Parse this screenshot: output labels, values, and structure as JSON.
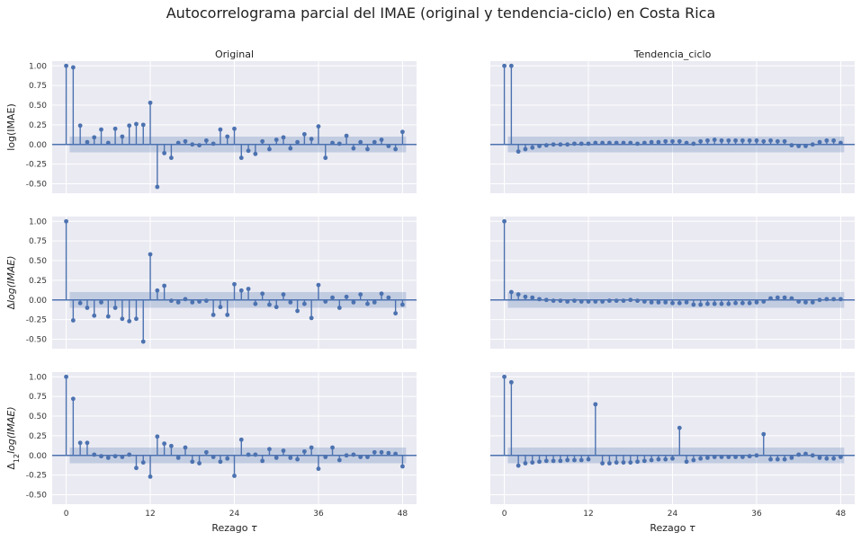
{
  "figure": {
    "title": "Autocorrelograma parcial del IMAE (original y tendencia-ciclo) en Costa Rica",
    "col_titles": [
      "Original",
      "Tendencia_ciclo"
    ],
    "row_ylabels": [
      "log(IMAE)",
      "Δlog(IMAE)",
      "Δ12log(IMAE)"
    ],
    "xlabel": "Rezago τ",
    "colors": {
      "stem": "#4c72b0",
      "band": "#4c72b0",
      "background": "#eaeaf2",
      "grid": "#ffffff"
    }
  },
  "chart_data": [
    {
      "type": "stem",
      "row": 0,
      "col": 0,
      "title": "Original",
      "ylabel": "log(IMAE)",
      "xlabel": "",
      "xlim": [
        -2,
        50
      ],
      "ylim": [
        -0.62,
        1.06
      ],
      "xticks": [
        0,
        12,
        24,
        36,
        48
      ],
      "yticks": [
        -0.5,
        -0.25,
        0.0,
        0.25,
        0.5,
        0.75,
        1.0
      ],
      "show_xticklabels": false,
      "show_yticklabels": true,
      "confint": 0.1,
      "values": [
        1.0,
        0.98,
        0.24,
        0.03,
        0.09,
        0.19,
        0.02,
        0.2,
        0.1,
        0.24,
        0.26,
        0.25,
        0.53,
        -0.54,
        -0.11,
        -0.17,
        0.02,
        0.04,
        0.0,
        -0.01,
        0.05,
        0.01,
        0.19,
        0.1,
        0.2,
        -0.17,
        -0.08,
        -0.12,
        0.04,
        -0.06,
        0.06,
        0.09,
        -0.05,
        0.03,
        0.13,
        0.07,
        0.23,
        -0.17,
        0.02,
        0.01,
        0.11,
        -0.05,
        0.03,
        -0.06,
        0.03,
        0.06,
        -0.02,
        -0.06,
        0.16
      ]
    },
    {
      "type": "stem",
      "row": 0,
      "col": 1,
      "title": "Tendencia_ciclo",
      "ylabel": "",
      "xlabel": "",
      "xlim": [
        -2,
        50
      ],
      "ylim": [
        -0.62,
        1.06
      ],
      "xticks": [
        0,
        12,
        24,
        36,
        48
      ],
      "yticks": [
        -0.5,
        -0.25,
        0.0,
        0.25,
        0.5,
        0.75,
        1.0
      ],
      "show_xticklabels": false,
      "show_yticklabels": false,
      "confint": 0.1,
      "values": [
        1.0,
        1.0,
        -0.09,
        -0.06,
        -0.04,
        -0.02,
        -0.01,
        0.0,
        0.0,
        0.0,
        0.01,
        0.01,
        0.01,
        0.02,
        0.02,
        0.02,
        0.02,
        0.02,
        0.02,
        0.01,
        0.02,
        0.03,
        0.03,
        0.04,
        0.04,
        0.04,
        0.02,
        0.01,
        0.04,
        0.05,
        0.06,
        0.05,
        0.05,
        0.05,
        0.05,
        0.05,
        0.05,
        0.04,
        0.05,
        0.04,
        0.04,
        -0.01,
        -0.02,
        -0.02,
        0.0,
        0.03,
        0.05,
        0.05,
        0.02
      ]
    },
    {
      "type": "stem",
      "row": 1,
      "col": 0,
      "title": "",
      "ylabel": "Δlog(IMAE)",
      "xlabel": "",
      "xlim": [
        -2,
        50
      ],
      "ylim": [
        -0.62,
        1.06
      ],
      "xticks": [
        0,
        12,
        24,
        36,
        48
      ],
      "yticks": [
        -0.5,
        -0.25,
        0.0,
        0.25,
        0.5,
        0.75,
        1.0
      ],
      "show_xticklabels": false,
      "show_yticklabels": true,
      "confint": 0.1,
      "values": [
        1.0,
        -0.26,
        -0.04,
        -0.1,
        -0.2,
        -0.03,
        -0.21,
        -0.1,
        -0.24,
        -0.27,
        -0.24,
        -0.53,
        0.58,
        0.12,
        0.18,
        -0.01,
        -0.03,
        0.01,
        -0.03,
        -0.02,
        -0.01,
        -0.19,
        -0.09,
        -0.19,
        0.2,
        0.12,
        0.14,
        -0.05,
        0.08,
        -0.06,
        -0.09,
        0.07,
        -0.03,
        -0.14,
        -0.05,
        -0.23,
        0.19,
        -0.02,
        0.03,
        -0.1,
        0.04,
        -0.03,
        0.07,
        -0.05,
        -0.03,
        0.08,
        0.03,
        -0.17,
        -0.06
      ]
    },
    {
      "type": "stem",
      "row": 1,
      "col": 1,
      "title": "",
      "ylabel": "",
      "xlabel": "",
      "xlim": [
        -2,
        50
      ],
      "ylim": [
        -0.62,
        1.06
      ],
      "xticks": [
        0,
        12,
        24,
        36,
        48
      ],
      "yticks": [
        -0.5,
        -0.25,
        0.0,
        0.25,
        0.5,
        0.75,
        1.0
      ],
      "show_xticklabels": false,
      "show_yticklabels": false,
      "confint": 0.1,
      "values": [
        1.0,
        0.1,
        0.07,
        0.04,
        0.03,
        0.01,
        0.0,
        -0.01,
        -0.01,
        -0.02,
        -0.01,
        -0.02,
        -0.02,
        -0.02,
        -0.02,
        -0.01,
        -0.01,
        -0.01,
        0.0,
        -0.01,
        -0.02,
        -0.03,
        -0.03,
        -0.03,
        -0.04,
        -0.04,
        -0.03,
        -0.06,
        -0.06,
        -0.05,
        -0.05,
        -0.05,
        -0.05,
        -0.04,
        -0.04,
        -0.04,
        -0.03,
        -0.02,
        0.02,
        0.03,
        0.03,
        0.02,
        -0.02,
        -0.03,
        -0.03,
        0.0,
        0.01,
        0.01,
        0.01
      ]
    },
    {
      "type": "stem",
      "row": 2,
      "col": 0,
      "title": "",
      "ylabel": "Δ12log(IMAE)",
      "xlabel": "Rezago τ",
      "xlim": [
        -2,
        50
      ],
      "ylim": [
        -0.62,
        1.06
      ],
      "xticks": [
        0,
        12,
        24,
        36,
        48
      ],
      "yticks": [
        -0.5,
        -0.25,
        0.0,
        0.25,
        0.5,
        0.75,
        1.0
      ],
      "show_xticklabels": true,
      "show_yticklabels": true,
      "confint": 0.1,
      "values": [
        1.0,
        0.72,
        0.16,
        0.16,
        0.01,
        -0.01,
        -0.03,
        -0.01,
        -0.02,
        0.01,
        -0.16,
        -0.09,
        -0.27,
        0.24,
        0.15,
        0.12,
        -0.03,
        0.1,
        -0.08,
        -0.1,
        0.04,
        -0.02,
        -0.08,
        -0.04,
        -0.26,
        0.2,
        0.01,
        0.01,
        -0.07,
        0.08,
        -0.03,
        0.06,
        -0.03,
        -0.05,
        0.05,
        0.1,
        -0.17,
        -0.02,
        0.1,
        -0.06,
        0.0,
        0.01,
        -0.02,
        -0.02,
        0.04,
        0.04,
        0.03,
        0.02,
        -0.14
      ]
    },
    {
      "type": "stem",
      "row": 2,
      "col": 1,
      "title": "",
      "ylabel": "",
      "xlabel": "Rezago τ",
      "xlim": [
        -2,
        50
      ],
      "ylim": [
        -0.62,
        1.06
      ],
      "xticks": [
        0,
        12,
        24,
        36,
        48
      ],
      "yticks": [
        -0.5,
        -0.25,
        0.0,
        0.25,
        0.5,
        0.75,
        1.0
      ],
      "show_xticklabels": true,
      "show_yticklabels": false,
      "confint": 0.1,
      "values": [
        1.0,
        0.93,
        -0.13,
        -0.1,
        -0.09,
        -0.08,
        -0.07,
        -0.07,
        -0.07,
        -0.06,
        -0.06,
        -0.06,
        -0.05,
        0.65,
        -0.1,
        -0.1,
        -0.09,
        -0.09,
        -0.09,
        -0.08,
        -0.07,
        -0.06,
        -0.05,
        -0.05,
        -0.04,
        0.35,
        -0.08,
        -0.06,
        -0.04,
        -0.03,
        -0.02,
        -0.02,
        -0.02,
        -0.02,
        -0.02,
        -0.01,
        0.0,
        0.27,
        -0.05,
        -0.05,
        -0.05,
        -0.03,
        0.01,
        0.02,
        0.0,
        -0.03,
        -0.04,
        -0.04,
        -0.02
      ]
    }
  ]
}
